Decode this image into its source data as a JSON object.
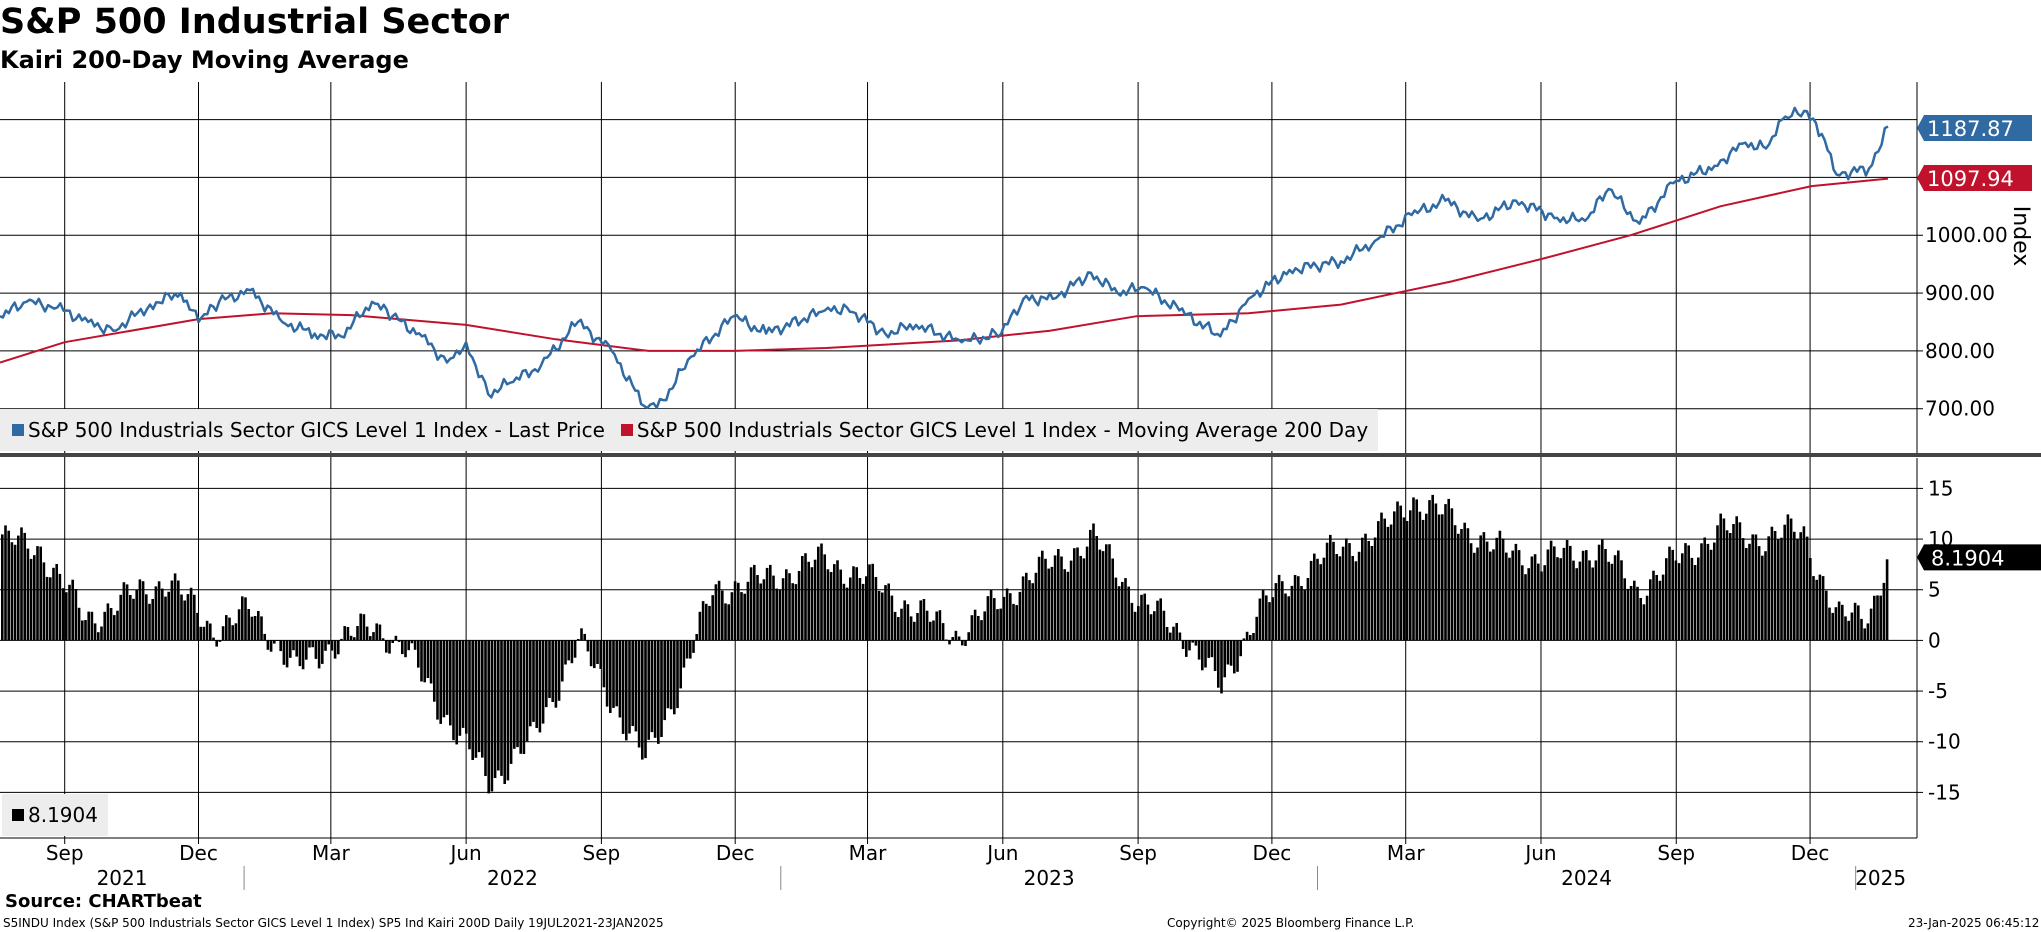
{
  "title": "S&P 500 Industrial Sector",
  "subtitle": "Kairi 200-Day Moving Average",
  "source": "Source: CHARTbeat",
  "footer": {
    "left": "S5INDU Index (S&P 500 Industrials Sector GICS Level 1 Index) SP5 Ind Kairi 200D  Daily 19JUL2021-23JAN2025",
    "center": "Copyright© 2025 Bloomberg Finance L.P.",
    "right": "23-Jan-2025 06:45:12"
  },
  "colors": {
    "price": "#2f6aa3",
    "ma": "#c0122c",
    "kairi": "#000000",
    "legend_bg": "#ededed"
  },
  "chart_data": [
    {
      "type": "line",
      "title": "S&P 500 Industrial Sector",
      "ylabel": "Index",
      "ylim": [
        620,
        1265
      ],
      "y_ticks": [
        700,
        800,
        900,
        1000
      ],
      "y_tick_labels": [
        "700.00",
        "800.00",
        "900.00",
        "1000.00"
      ],
      "x_range": [
        "2021-07-19",
        "2025-01-23"
      ],
      "series": [
        {
          "name": "S&P 500 Industrials Sector GICS Level 1 Index - Last Price",
          "color": "#2f6aa3",
          "last_label": "1187.87",
          "points": [
            [
              "2021-07-19",
              860
            ],
            [
              "2021-08-06",
              885
            ],
            [
              "2021-08-27",
              875
            ],
            [
              "2021-09-17",
              850
            ],
            [
              "2021-10-04",
              835
            ],
            [
              "2021-10-29",
              880
            ],
            [
              "2021-11-19",
              900
            ],
            [
              "2021-12-01",
              850
            ],
            [
              "2021-12-15",
              885
            ],
            [
              "2022-01-05",
              905
            ],
            [
              "2022-01-27",
              850
            ],
            [
              "2022-02-18",
              830
            ],
            [
              "2022-03-08",
              825
            ],
            [
              "2022-03-29",
              885
            ],
            [
              "2022-04-12",
              860
            ],
            [
              "2022-05-02",
              825
            ],
            [
              "2022-05-19",
              780
            ],
            [
              "2022-06-01",
              815
            ],
            [
              "2022-06-16",
              725
            ],
            [
              "2022-07-01",
              745
            ],
            [
              "2022-07-22",
              775
            ],
            [
              "2022-08-16",
              850
            ],
            [
              "2022-09-08",
              800
            ],
            [
              "2022-09-30",
              705
            ],
            [
              "2022-10-13",
              715
            ],
            [
              "2022-11-01",
              790
            ],
            [
              "2022-11-30",
              860
            ],
            [
              "2022-12-22",
              830
            ],
            [
              "2023-01-31",
              870
            ],
            [
              "2023-02-15",
              875
            ],
            [
              "2023-03-13",
              830
            ],
            [
              "2023-04-03",
              845
            ],
            [
              "2023-05-04",
              815
            ],
            [
              "2023-05-31",
              830
            ],
            [
              "2023-06-15",
              890
            ],
            [
              "2023-07-05",
              890
            ],
            [
              "2023-07-31",
              935
            ],
            [
              "2023-08-18",
              900
            ],
            [
              "2023-09-05",
              910
            ],
            [
              "2023-09-29",
              870
            ],
            [
              "2023-10-27",
              825
            ],
            [
              "2023-11-15",
              890
            ],
            [
              "2023-12-13",
              940
            ],
            [
              "2024-01-17",
              955
            ],
            [
              "2024-02-09",
              990
            ],
            [
              "2024-03-05",
              1035
            ],
            [
              "2024-03-28",
              1060
            ],
            [
              "2024-04-19",
              1025
            ],
            [
              "2024-05-15",
              1060
            ],
            [
              "2024-06-12",
              1030
            ],
            [
              "2024-07-01",
              1025
            ],
            [
              "2024-07-17",
              1080
            ],
            [
              "2024-08-07",
              1020
            ],
            [
              "2024-08-30",
              1090
            ],
            [
              "2024-09-27",
              1120
            ],
            [
              "2024-10-18",
              1160
            ],
            [
              "2024-11-01",
              1150
            ],
            [
              "2024-11-12",
              1200
            ],
            [
              "2024-11-27",
              1215
            ],
            [
              "2024-12-09",
              1175
            ],
            [
              "2024-12-19",
              1105
            ],
            [
              "2025-01-10",
              1115
            ],
            [
              "2025-01-23",
              1188
            ]
          ]
        },
        {
          "name": "S&P 500 Industrials Sector GICS Level 1 Index - Moving Average 200 Day",
          "color": "#c0122c",
          "last_label": "1097.94",
          "points": [
            [
              "2021-07-19",
              780
            ],
            [
              "2021-09-01",
              815
            ],
            [
              "2021-12-01",
              855
            ],
            [
              "2022-01-20",
              865
            ],
            [
              "2022-03-15",
              862
            ],
            [
              "2022-06-01",
              845
            ],
            [
              "2022-08-01",
              820
            ],
            [
              "2022-10-03",
              800
            ],
            [
              "2022-12-01",
              800
            ],
            [
              "2023-02-01",
              805
            ],
            [
              "2023-05-01",
              818
            ],
            [
              "2023-07-03",
              835
            ],
            [
              "2023-08-31",
              860
            ],
            [
              "2023-11-15",
              865
            ],
            [
              "2024-01-17",
              880
            ],
            [
              "2024-04-01",
              920
            ],
            [
              "2024-06-03",
              960
            ],
            [
              "2024-08-01",
              1000
            ],
            [
              "2024-10-01",
              1050
            ],
            [
              "2024-12-02",
              1085
            ],
            [
              "2025-01-23",
              1098
            ]
          ]
        }
      ]
    },
    {
      "type": "bar",
      "title": "Kairi 200-Day Moving Average",
      "ylim": [
        -19.5,
        18
      ],
      "y_ticks": [
        -15,
        -10,
        -5,
        0,
        5,
        10,
        15
      ],
      "y_tick_labels": [
        "-15",
        "-10",
        "-5",
        "0",
        "5",
        "10",
        "15"
      ],
      "series": [
        {
          "name": "Kairi 200D",
          "color": "#000000",
          "last_label": "8.1904",
          "legend": "8.1904",
          "points": [
            [
              "2021-07-19",
              10
            ],
            [
              "2021-08-15",
              9
            ],
            [
              "2021-09-15",
              2
            ],
            [
              "2021-10-10",
              4
            ],
            [
              "2021-11-10",
              6
            ],
            [
              "2021-12-10",
              1
            ],
            [
              "2022-01-05",
              3
            ],
            [
              "2022-02-05",
              -3
            ],
            [
              "2022-03-05",
              0
            ],
            [
              "2022-03-30",
              1.5
            ],
            [
              "2022-04-20",
              -1
            ],
            [
              "2022-05-15",
              -7
            ],
            [
              "2022-06-16",
              -14
            ],
            [
              "2022-07-15",
              -10
            ],
            [
              "2022-08-16",
              0
            ],
            [
              "2022-09-30",
              -12
            ],
            [
              "2022-10-25",
              -4
            ],
            [
              "2022-11-15",
              5
            ],
            [
              "2022-12-20",
              6
            ],
            [
              "2023-01-30",
              8
            ],
            [
              "2023-03-01",
              6
            ],
            [
              "2023-04-01",
              3
            ],
            [
              "2023-05-01",
              0.5
            ],
            [
              "2023-06-15",
              6
            ],
            [
              "2023-08-01",
              10
            ],
            [
              "2023-09-01",
              4
            ],
            [
              "2023-10-05",
              0
            ],
            [
              "2023-10-27",
              -5
            ],
            [
              "2023-11-20",
              3
            ],
            [
              "2024-01-01",
              8
            ],
            [
              "2024-02-15",
              11
            ],
            [
              "2024-03-05",
              14
            ],
            [
              "2024-04-01",
              12
            ],
            [
              "2024-05-01",
              9
            ],
            [
              "2024-06-01",
              8
            ],
            [
              "2024-07-10",
              9
            ],
            [
              "2024-08-05",
              5
            ],
            [
              "2024-09-01",
              8
            ],
            [
              "2024-10-01",
              11
            ],
            [
              "2024-11-01",
              10
            ],
            [
              "2024-11-25",
              11
            ],
            [
              "2024-12-19",
              2
            ],
            [
              "2025-01-10",
              3
            ],
            [
              "2025-01-23",
              8.19
            ]
          ]
        }
      ]
    }
  ],
  "x_axis": {
    "months": [
      {
        "label": "Sep",
        "date": "2021-09-01"
      },
      {
        "label": "Dec",
        "date": "2021-12-01"
      },
      {
        "label": "Mar",
        "date": "2022-03-01"
      },
      {
        "label": "Jun",
        "date": "2022-06-01"
      },
      {
        "label": "Sep",
        "date": "2022-09-01"
      },
      {
        "label": "Dec",
        "date": "2022-12-01"
      },
      {
        "label": "Mar",
        "date": "2023-03-01"
      },
      {
        "label": "Jun",
        "date": "2023-06-01"
      },
      {
        "label": "Sep",
        "date": "2023-09-01"
      },
      {
        "label": "Dec",
        "date": "2023-12-01"
      },
      {
        "label": "Mar",
        "date": "2024-03-01"
      },
      {
        "label": "Jun",
        "date": "2024-06-01"
      },
      {
        "label": "Sep",
        "date": "2024-09-01"
      },
      {
        "label": "Dec",
        "date": "2024-12-01"
      }
    ],
    "years": [
      {
        "label": "2021",
        "start": "2021-07-19",
        "end": "2022-01-01"
      },
      {
        "label": "2022",
        "start": "2022-01-01",
        "end": "2023-01-01"
      },
      {
        "label": "2023",
        "start": "2023-01-01",
        "end": "2024-01-01"
      },
      {
        "label": "2024",
        "start": "2024-01-01",
        "end": "2025-01-01"
      },
      {
        "label": "2025",
        "start": "2025-01-01",
        "end": "2025-01-23"
      }
    ]
  }
}
